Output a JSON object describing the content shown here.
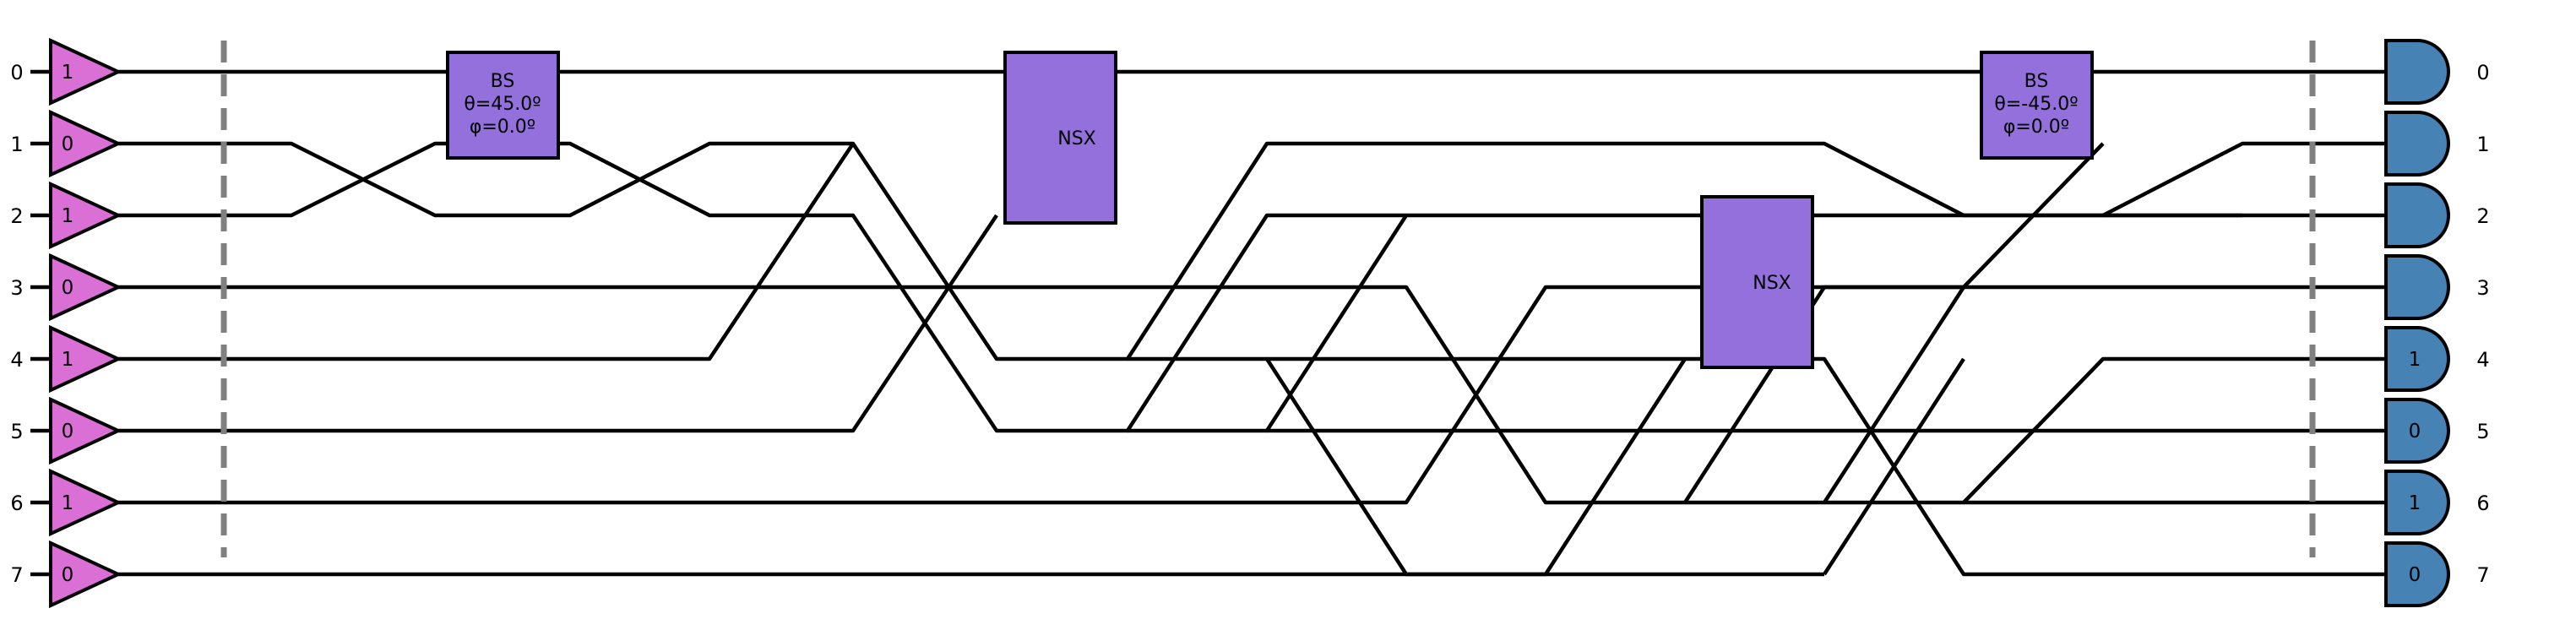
{
  "circuit": {
    "modes": [
      "0",
      "1",
      "2",
      "3",
      "4",
      "5",
      "6",
      "7"
    ],
    "input_photons": [
      "1",
      "0",
      "1",
      "0",
      "1",
      "0",
      "1",
      "0"
    ],
    "output_detectors": [
      "",
      "",
      "",
      "",
      "1",
      "0",
      "1",
      "0"
    ],
    "colors": {
      "input_fill": "#da70d6",
      "gate_fill": "#9370db",
      "detector_fill": "#4682b4",
      "barrier": "#808080",
      "wire": "#000000"
    },
    "gates": [
      {
        "name": "BS",
        "params": [
          "θ=45.0º",
          "φ=0.0º"
        ]
      },
      {
        "name": "NSX",
        "params": []
      },
      {
        "name": "NSX",
        "params": []
      },
      {
        "name": "BS",
        "params": [
          "θ=-45.0º",
          "φ=0.0º"
        ]
      }
    ]
  }
}
